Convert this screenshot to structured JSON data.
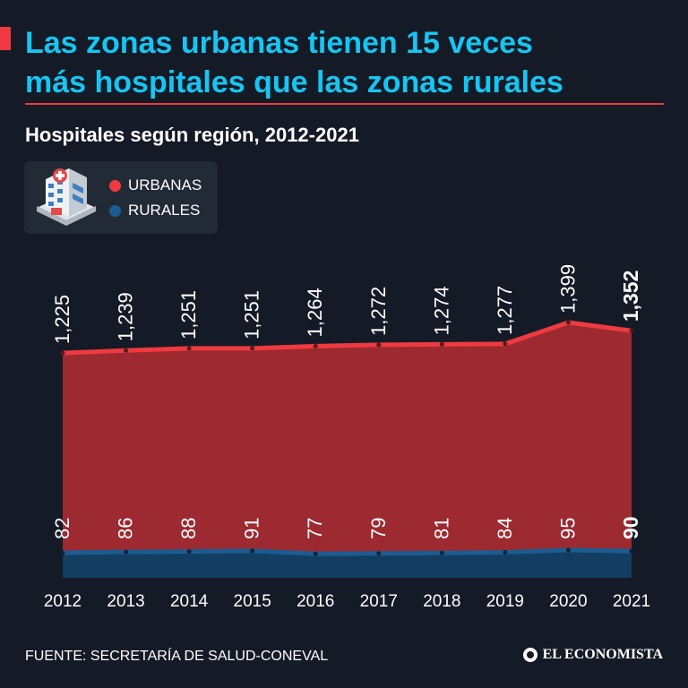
{
  "headline": {
    "line1": "Las zonas urbanas tienen 15 veces",
    "line2": "más hospitales que las zonas rurales"
  },
  "subtitle": "Hospitales según región, 2012-2021",
  "legend": {
    "icon": "hospital-icon",
    "items": [
      {
        "label": "URBANAS",
        "color": "#ee3a40"
      },
      {
        "label": "RURALES",
        "color": "#1b5d92"
      }
    ]
  },
  "footer": {
    "source": "FUENTE: SECRETARÍA DE SALUD-CONEVAL",
    "logo": "EL ECONOMISTA"
  },
  "colors": {
    "headline": "#17c5f2",
    "accent": "#ee3a40",
    "urban_fill": "#9c2a30",
    "urban_line": "#ee3a40",
    "rural_fill": "#133e62",
    "rural_line": "#1b5d92",
    "background": "#141b26"
  },
  "chart_data": {
    "type": "area",
    "title": "Hospitales según región, 2012-2021",
    "categories": [
      "2012",
      "2013",
      "2014",
      "2015",
      "2016",
      "2017",
      "2018",
      "2019",
      "2020",
      "2021"
    ],
    "series": [
      {
        "name": "URBANAS",
        "values": [
          1225,
          1239,
          1251,
          1251,
          1264,
          1272,
          1274,
          1277,
          1399,
          1352
        ],
        "labels": [
          "1,225",
          "1,239",
          "1,251",
          "1,251",
          "1,264",
          "1,272",
          "1,274",
          "1,277",
          "1,399",
          "1,352"
        ]
      },
      {
        "name": "RURALES",
        "values": [
          82,
          86,
          88,
          91,
          77,
          79,
          81,
          84,
          95,
          90
        ],
        "labels": [
          "82",
          "86",
          "88",
          "91",
          "77",
          "79",
          "81",
          "84",
          "95",
          "90"
        ]
      }
    ],
    "highlight_last": true,
    "xlabel": "",
    "ylabel": ""
  }
}
